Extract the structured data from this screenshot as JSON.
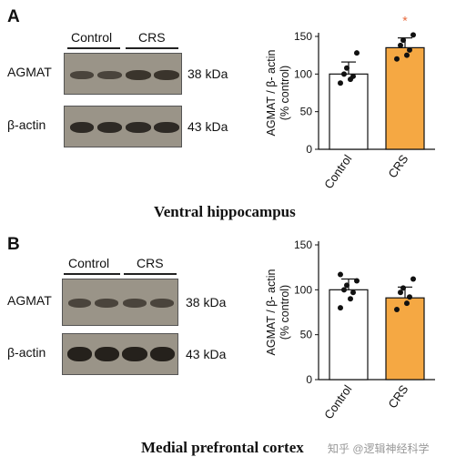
{
  "panels": [
    {
      "letter": "A",
      "group_labels": [
        "Control",
        "CRS"
      ],
      "blot_rows": [
        {
          "protein": "AGMAT",
          "kda": "38 kDa"
        },
        {
          "protein": "β-actin",
          "kda": "43 kDa"
        }
      ],
      "caption": "Ventral hippocampus"
    },
    {
      "letter": "B",
      "group_labels": [
        "Control",
        "CRS"
      ],
      "blot_rows": [
        {
          "protein": "AGMAT",
          "kda": "38 kDa"
        },
        {
          "protein": "β-actin",
          "kda": "43 kDa"
        }
      ],
      "caption": "Medial prefrontal cortex"
    }
  ],
  "chart_data": [
    {
      "type": "bar",
      "categories": [
        "Control",
        "CRS"
      ],
      "values": [
        100,
        135
      ],
      "errors": [
        16,
        13
      ],
      "points": [
        [
          88,
          93,
          97,
          100,
          108,
          128
        ],
        [
          120,
          125,
          132,
          138,
          145,
          152
        ]
      ],
      "significance": [
        "",
        "*"
      ],
      "bar_colors": [
        "#ffffff",
        "#f5a843"
      ],
      "ylabel": "AGMAT / β- actin\n(% control)",
      "ylim": [
        0,
        150
      ],
      "yticks": [
        0,
        50,
        100,
        150
      ]
    },
    {
      "type": "bar",
      "categories": [
        "Control",
        "CRS"
      ],
      "values": [
        100,
        91
      ],
      "errors": [
        12,
        12
      ],
      "points": [
        [
          80,
          90,
          97,
          100,
          105,
          110,
          117
        ],
        [
          78,
          85,
          92,
          97,
          102,
          112
        ]
      ],
      "significance": [
        "",
        ""
      ],
      "bar_colors": [
        "#ffffff",
        "#f5a843"
      ],
      "ylabel": "AGMAT / β- actin\n(% control)",
      "ylim": [
        0,
        150
      ],
      "yticks": [
        0,
        50,
        100,
        150
      ]
    }
  ],
  "watermark": "知乎 @逻辑神经科学"
}
